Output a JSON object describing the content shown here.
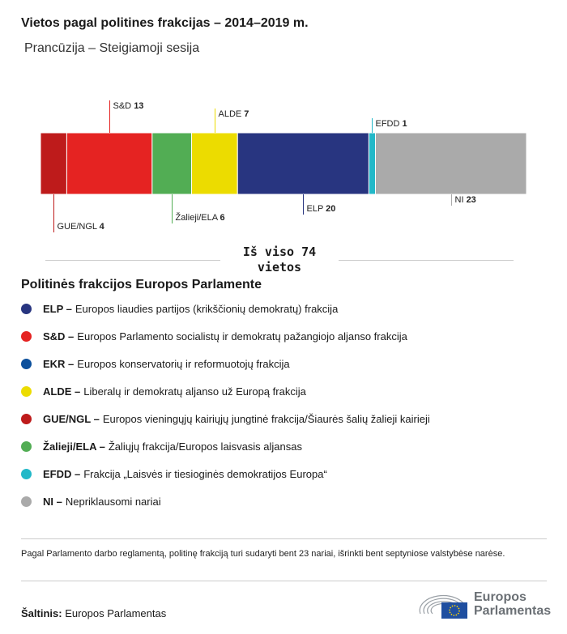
{
  "title": "Vietos pagal politines frakcijas – 2014–2019 m.",
  "subtitle": "Prancūzija – Steigiamoji sesija",
  "chart_data": {
    "type": "bar",
    "orientation": "horizontal-stacked",
    "title": "Vietos pagal politines frakcijas – 2014–2019 m.",
    "categories": [
      "GUE/NGL",
      "S&D",
      "Žalieji/ELA",
      "ALDE",
      "ELP",
      "EFDD",
      "NI"
    ],
    "values": [
      4,
      13,
      6,
      7,
      20,
      1,
      23
    ],
    "colors": [
      "#be1b1b",
      "#e52322",
      "#52ad54",
      "#ecdc00",
      "#283580",
      "#22b8c8",
      "#aaaaaa"
    ],
    "total": 74
  },
  "total_label": "Iš viso 74 vietos",
  "legend_title": "Politinės frakcijos Europos Parlamente",
  "legend": [
    {
      "abbr": "ELP –",
      "text": "Europos liaudies partijos (krikščionių demokratų) frakcija",
      "color": "#283580"
    },
    {
      "abbr": "S&D –",
      "text": "Europos Parlamento socialistų ir demokratų pažangiojo aljanso frakcija",
      "color": "#e52322"
    },
    {
      "abbr": "EKR –",
      "text": "Europos konservatorių ir reformuotojų frakcija",
      "color": "#0b4f9c"
    },
    {
      "abbr": "ALDE –",
      "text": "Liberalų ir demokratų aljanso už Europą frakcija",
      "color": "#ecdc00"
    },
    {
      "abbr": "GUE/NGL –",
      "text": "Europos vieningųjų kairiųjų jungtinė frakcija/Šiaurės šalių žalieji kairieji",
      "color": "#be1b1b"
    },
    {
      "abbr": "Žalieji/ELA –",
      "text": "Žaliųjų frakcija/Europos laisvasis aljansas",
      "color": "#52ad54"
    },
    {
      "abbr": "EFDD –",
      "text": "Frakcija „Laisvės ir tiesioginės demokratijos Europa“",
      "color": "#22b8c8"
    },
    {
      "abbr": "NI –",
      "text": "Nepriklausomi nariai",
      "color": "#aaaaaa"
    }
  ],
  "note": "Pagal Parlamento darbo reglamentą, politinę frakciją turi sudaryti bent 23 nariai, išrinkti bent septyniose valstybėse narėse.",
  "source_label": "Šaltinis:",
  "source": "Europos Parlamentas",
  "logo": "Europos Parlamentas",
  "logo_lines": [
    "Europos",
    "Parlamentas"
  ]
}
